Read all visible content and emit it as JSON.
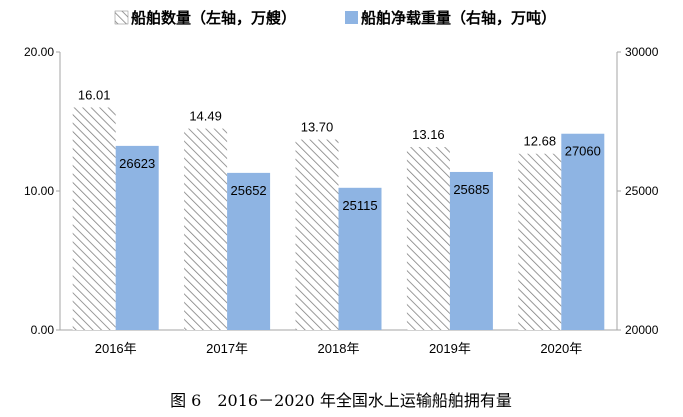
{
  "chart_data": {
    "type": "bar",
    "categories": [
      "2016年",
      "2017年",
      "2018年",
      "2019年",
      "2020年"
    ],
    "series": [
      {
        "name": "船舶数量（左轴，万艘）",
        "axis": "left",
        "values": [
          16.01,
          14.49,
          13.7,
          13.16,
          12.68
        ],
        "labels": [
          "16.01",
          "14.49",
          "13.70",
          "13.16",
          "12.68"
        ]
      },
      {
        "name": "船舶净载重量（右轴，万吨）",
        "axis": "right",
        "values": [
          26623,
          25652,
          25115,
          25685,
          27060
        ],
        "labels": [
          "26623",
          "25652",
          "25115",
          "25685",
          "27060"
        ]
      }
    ],
    "left_axis": {
      "ylim": [
        0,
        20
      ],
      "ticks": [
        "0.00",
        "10.00",
        "20.00"
      ]
    },
    "right_axis": {
      "ylim": [
        20000,
        30000
      ],
      "ticks": [
        "20000",
        "25000",
        "30000"
      ]
    },
    "legend_position": "top",
    "grid": false,
    "colors": {
      "series1_hatch": "#7f7f7f",
      "series2_fill": "#8eb4e3",
      "axis": "#a6a6a6"
    },
    "caption": "图 6　2016－2020 年全国水上运输船舶拥有量"
  }
}
